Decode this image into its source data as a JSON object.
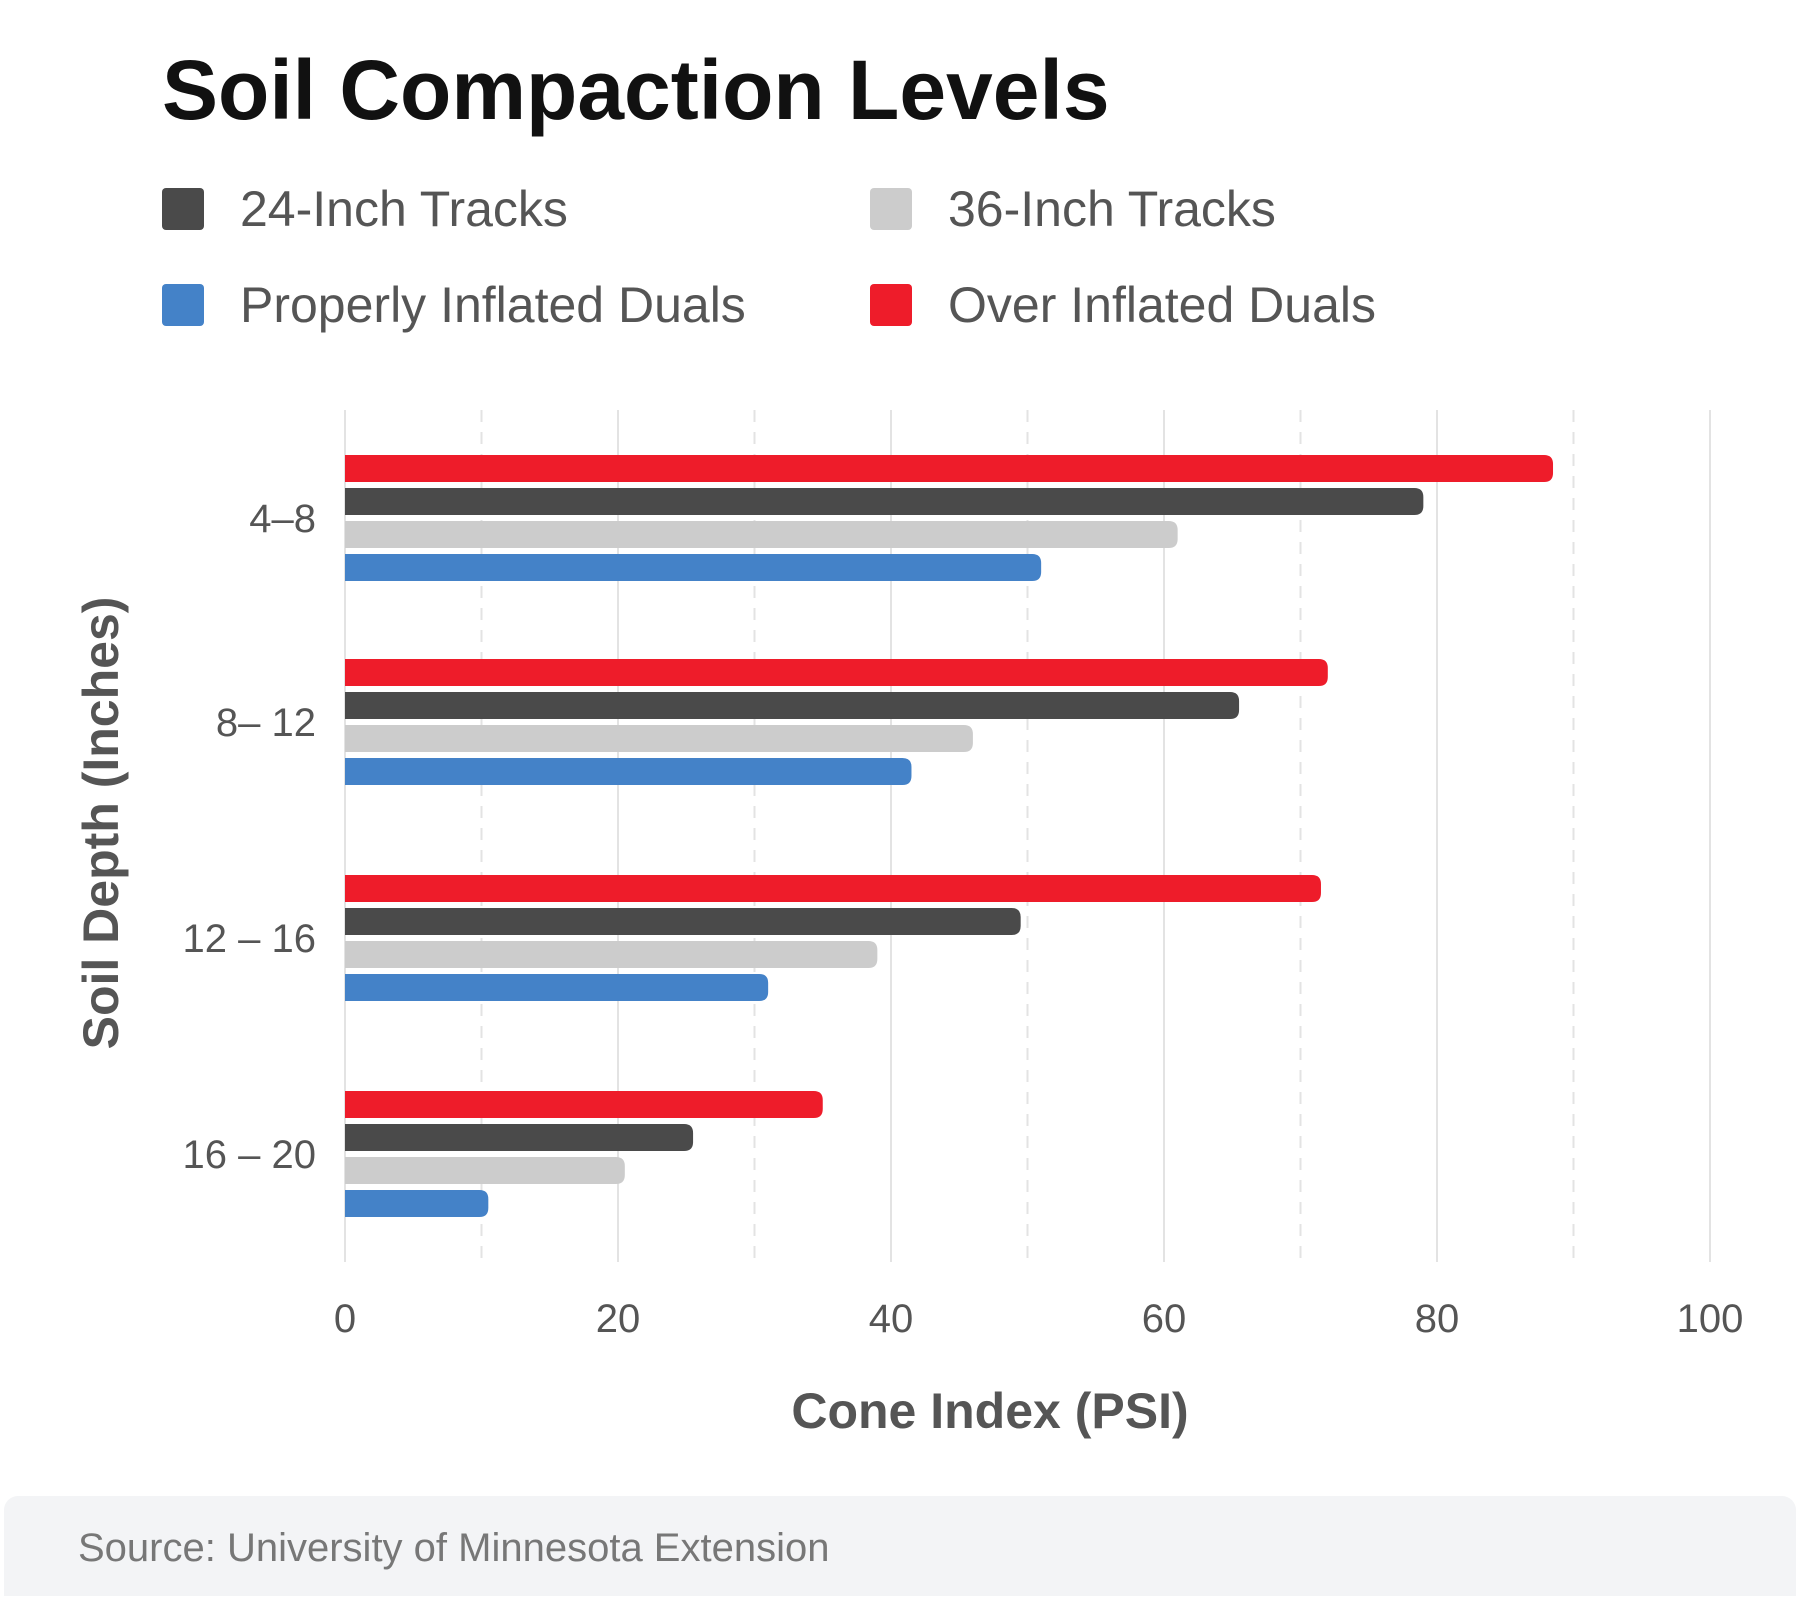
{
  "chart_data": {
    "type": "bar",
    "orientation": "horizontal",
    "title": "Soil Compaction Levels",
    "xlabel": "Cone Index (PSI)",
    "ylabel": "Soil Depth (Inches)",
    "xlim": [
      0,
      100
    ],
    "xticks": [
      0,
      20,
      40,
      60,
      80,
      100
    ],
    "grid": true,
    "legend_position": "top",
    "categories": [
      "4–8",
      "8– 12",
      "12 – 16",
      "16 – 20"
    ],
    "series": [
      {
        "name": "Over Inflated Duals",
        "color": "#ee1c2a",
        "values": [
          88.5,
          72,
          71.5,
          35
        ]
      },
      {
        "name": "24-Inch Tracks",
        "color": "#4a4a4a",
        "values": [
          79,
          65.5,
          49.5,
          25.5
        ]
      },
      {
        "name": "36-Inch Tracks",
        "color": "#cccccc",
        "values": [
          61,
          46,
          39,
          20.5
        ]
      },
      {
        "name": "Properly Inflated Duals",
        "color": "#4482c8",
        "values": [
          51,
          41.5,
          31,
          10.5
        ]
      }
    ]
  },
  "legend": [
    {
      "name": "24-Inch Tracks",
      "color": "#4a4a4a"
    },
    {
      "name": "36-Inch Tracks",
      "color": "#cccccc"
    },
    {
      "name": "Properly Inflated Duals",
      "color": "#4482c8"
    },
    {
      "name": "Over Inflated Duals",
      "color": "#ee1c2a"
    }
  ],
  "footer": {
    "source": "Source: University of Minnesota Extension"
  }
}
